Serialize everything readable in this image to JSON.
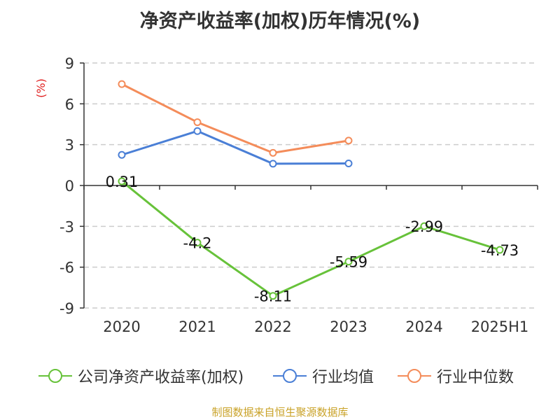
{
  "chart_data": {
    "type": "line",
    "title": "净资产收益率(加权)历年情况(%)",
    "ylabel": "(%)",
    "categories": [
      "2020",
      "2021",
      "2022",
      "2023",
      "2024",
      "2025H1"
    ],
    "ylim": [
      -9,
      9
    ],
    "yticks": [
      9,
      6,
      3,
      0,
      -3,
      -6,
      -9
    ],
    "ytick_labels": [
      "9",
      "6",
      "3",
      "0",
      "-3",
      "-6",
      "-9"
    ],
    "grid": true,
    "legend_position": "bottom",
    "series": [
      {
        "name": "公司净资产收益率(加权)",
        "color": "#67c23a",
        "values": [
          0.31,
          -4.2,
          -8.11,
          -5.59,
          -2.99,
          -4.73
        ],
        "labels": [
          "0.31",
          "-4.2",
          "-8.11",
          "-5.59",
          "-2.99",
          "-4.73"
        ]
      },
      {
        "name": "行业均值",
        "color": "#4a7fd6",
        "values": [
          2.25,
          4.0,
          1.6,
          1.62,
          null,
          null
        ]
      },
      {
        "name": "行业中位数",
        "color": "#f48c5a",
        "values": [
          7.45,
          4.65,
          2.4,
          3.3,
          null,
          null
        ]
      }
    ]
  },
  "source": "制图数据来自恒生聚源数据库"
}
